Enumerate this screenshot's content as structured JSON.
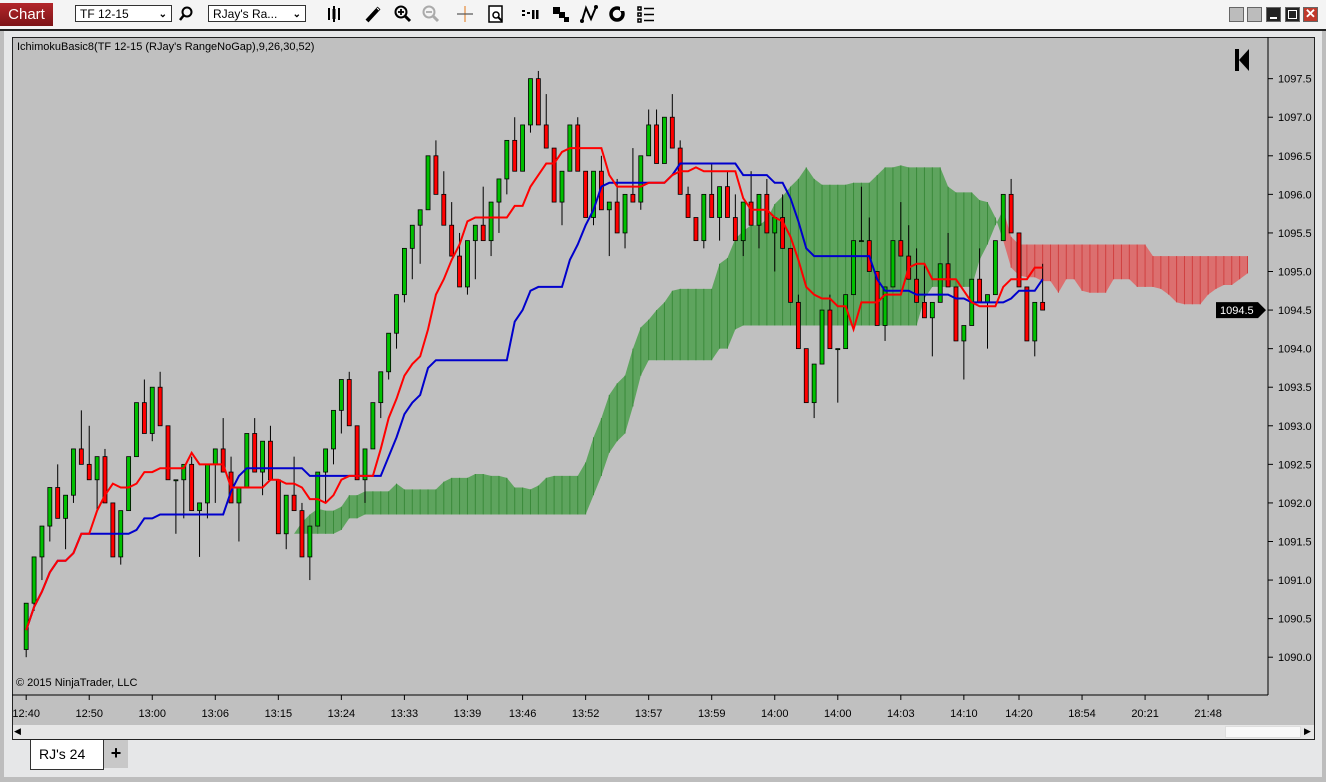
{
  "toolbar": {
    "chart_label": "Chart",
    "instrument": "TF 12-15",
    "bars_type": "RJay's Ra...",
    "icons": [
      "bar-style-icon",
      "pencil-icon",
      "zoom-in-icon",
      "zoom-out-icon",
      "crosshair-icon",
      "data-box-icon",
      "bar-spacing-icon",
      "chart-style-icon",
      "drawing-tools-icon",
      "reload-icon",
      "properties-list-icon"
    ],
    "window_icons": [
      "tile-icon",
      "tile-icon",
      "minimize-icon",
      "maximize-icon",
      "close-icon"
    ]
  },
  "chart": {
    "indicator_label": "IchimokuBasic8(TF 12-15 (RJay's RangeNoGap),9,26,30,52)",
    "copyright": "© 2015 NinjaTrader, LLC",
    "last_price_label": "1094.5",
    "colors": {
      "background": "#c0c0c0",
      "up": "#00c000",
      "down": "#ff0000",
      "tenkan": "#ff0000",
      "kijun": "#0000cc",
      "cloud_bull": "#4c9f4c",
      "cloud_bear": "#e06060"
    }
  },
  "tabs": [
    {
      "label": "RJ's 24"
    }
  ],
  "tab_add": "+",
  "chart_data": {
    "type": "candlestick",
    "title": "IchimokuBasic8(TF 12-15 (RJay's RangeNoGap),9,26,30,52)",
    "params": [
      9,
      26,
      30,
      52
    ],
    "ylim": [
      1089.51,
      1098.04
    ],
    "xlim": [
      -1.8,
      157.6
    ],
    "grid": false,
    "last_price": 1094.5,
    "price_ticks": [
      "1090.0",
      "1090.5",
      "1091.0",
      "1091.5",
      "1092.0",
      "1092.5",
      "1093.0",
      "1093.5",
      "1094.0",
      "1094.5",
      "1095.0",
      "1095.5",
      "1096.0",
      "1096.5",
      "1097.0",
      "1097.5"
    ],
    "time_labels": [
      {
        "bar": 0,
        "label": "12:40"
      },
      {
        "bar": 8,
        "label": "12:50"
      },
      {
        "bar": 16,
        "label": "13:00"
      },
      {
        "bar": 24,
        "label": "13:06"
      },
      {
        "bar": 32,
        "label": "13:15"
      },
      {
        "bar": 40,
        "label": "13:24"
      },
      {
        "bar": 48,
        "label": "13:33"
      },
      {
        "bar": 56,
        "label": "13:39"
      },
      {
        "bar": 63,
        "label": "13:46"
      },
      {
        "bar": 71,
        "label": "13:52"
      },
      {
        "bar": 79,
        "label": "13:57"
      },
      {
        "bar": 87,
        "label": "13:59"
      },
      {
        "bar": 95,
        "label": "14:00"
      },
      {
        "bar": 103,
        "label": "14:00"
      },
      {
        "bar": 111,
        "label": "14:03"
      },
      {
        "bar": 119,
        "label": "14:10"
      },
      {
        "bar": 126,
        "label": "14:20"
      },
      {
        "bar": 134,
        "label": "18:54"
      },
      {
        "bar": 142,
        "label": "20:21"
      },
      {
        "bar": 150,
        "label": "21:48"
      }
    ],
    "ohlc": [
      [
        1090.1,
        1090.7,
        1090.0,
        1090.7
      ],
      [
        1090.7,
        1091.3,
        1090.6,
        1091.3
      ],
      [
        1091.3,
        1091.7,
        1091.0,
        1091.7
      ],
      [
        1091.7,
        1092.2,
        1091.5,
        1092.2
      ],
      [
        1092.2,
        1092.5,
        1091.8,
        1091.8
      ],
      [
        1091.8,
        1092.1,
        1091.4,
        1092.1
      ],
      [
        1092.1,
        1092.7,
        1092.0,
        1092.7
      ],
      [
        1092.7,
        1093.2,
        1092.5,
        1092.5
      ],
      [
        1092.5,
        1093.0,
        1092.3,
        1092.3
      ],
      [
        1092.3,
        1092.6,
        1091.9,
        1092.6
      ],
      [
        1092.6,
        1092.7,
        1092.0,
        1092.0
      ],
      [
        1092.0,
        1092.0,
        1091.3,
        1091.3
      ],
      [
        1091.3,
        1091.9,
        1091.2,
        1091.9
      ],
      [
        1091.9,
        1092.6,
        1091.9,
        1092.6
      ],
      [
        1092.6,
        1093.3,
        1092.6,
        1093.3
      ],
      [
        1093.3,
        1093.6,
        1092.9,
        1092.9
      ],
      [
        1092.9,
        1093.5,
        1092.8,
        1093.5
      ],
      [
        1093.5,
        1093.7,
        1093.0,
        1093.0
      ],
      [
        1093.0,
        1093.0,
        1092.3,
        1092.3
      ],
      [
        1092.3,
        1092.3,
        1091.6,
        1092.3
      ],
      [
        1092.3,
        1092.5,
        1091.8,
        1092.5
      ],
      [
        1092.5,
        1092.6,
        1091.9,
        1091.9
      ],
      [
        1091.9,
        1092.0,
        1091.3,
        1092.0
      ],
      [
        1092.0,
        1092.5,
        1091.8,
        1092.5
      ],
      [
        1092.5,
        1092.7,
        1092.0,
        1092.7
      ],
      [
        1092.7,
        1093.1,
        1092.4,
        1092.4
      ],
      [
        1092.4,
        1092.6,
        1092.0,
        1092.0
      ],
      [
        1092.0,
        1092.2,
        1091.5,
        1092.2
      ],
      [
        1092.2,
        1092.9,
        1092.2,
        1092.9
      ],
      [
        1092.9,
        1093.1,
        1092.4,
        1092.4
      ],
      [
        1092.4,
        1092.8,
        1092.1,
        1092.8
      ],
      [
        1092.8,
        1093.0,
        1092.3,
        1092.3
      ],
      [
        1092.3,
        1092.3,
        1091.6,
        1091.6
      ],
      [
        1091.6,
        1092.1,
        1091.4,
        1092.1
      ],
      [
        1092.1,
        1092.6,
        1091.9,
        1091.9
      ],
      [
        1091.9,
        1092.0,
        1091.3,
        1091.3
      ],
      [
        1091.3,
        1091.7,
        1091.0,
        1091.7
      ],
      [
        1091.7,
        1092.4,
        1091.7,
        1092.4
      ],
      [
        1092.4,
        1092.7,
        1092.0,
        1092.7
      ],
      [
        1092.7,
        1093.2,
        1092.5,
        1093.2
      ],
      [
        1093.2,
        1093.6,
        1092.9,
        1093.6
      ],
      [
        1093.6,
        1093.7,
        1093.0,
        1093.0
      ],
      [
        1093.0,
        1093.0,
        1092.3,
        1092.3
      ],
      [
        1092.3,
        1092.7,
        1092.0,
        1092.7
      ],
      [
        1092.7,
        1093.3,
        1092.7,
        1093.3
      ],
      [
        1093.3,
        1093.7,
        1093.1,
        1093.7
      ],
      [
        1093.7,
        1094.2,
        1093.6,
        1094.2
      ],
      [
        1094.2,
        1094.7,
        1094.0,
        1094.7
      ],
      [
        1094.7,
        1095.3,
        1094.6,
        1095.3
      ],
      [
        1095.3,
        1095.6,
        1094.9,
        1095.6
      ],
      [
        1095.6,
        1095.8,
        1095.1,
        1095.8
      ],
      [
        1095.8,
        1096.5,
        1095.8,
        1096.5
      ],
      [
        1096.5,
        1096.7,
        1096.0,
        1096.0
      ],
      [
        1096.0,
        1096.3,
        1095.6,
        1095.6
      ],
      [
        1095.6,
        1095.9,
        1095.2,
        1095.2
      ],
      [
        1095.2,
        1095.5,
        1094.8,
        1094.8
      ],
      [
        1094.8,
        1095.4,
        1094.7,
        1095.4
      ],
      [
        1095.4,
        1095.6,
        1094.9,
        1095.6
      ],
      [
        1095.6,
        1096.1,
        1095.4,
        1095.4
      ],
      [
        1095.4,
        1095.9,
        1095.2,
        1095.9
      ],
      [
        1095.9,
        1096.2,
        1095.5,
        1096.2
      ],
      [
        1096.2,
        1096.7,
        1096.0,
        1096.7
      ],
      [
        1096.7,
        1097.0,
        1096.3,
        1096.3
      ],
      [
        1096.3,
        1096.9,
        1096.3,
        1096.9
      ],
      [
        1096.9,
        1097.5,
        1096.8,
        1097.5
      ],
      [
        1097.5,
        1097.6,
        1096.9,
        1096.9
      ],
      [
        1096.9,
        1097.3,
        1096.6,
        1096.6
      ],
      [
        1096.6,
        1096.6,
        1095.9,
        1095.9
      ],
      [
        1095.9,
        1096.3,
        1095.6,
        1096.3
      ],
      [
        1096.3,
        1096.9,
        1096.3,
        1096.9
      ],
      [
        1096.9,
        1097.0,
        1096.3,
        1096.3
      ],
      [
        1096.3,
        1096.3,
        1095.7,
        1095.7
      ],
      [
        1095.7,
        1096.3,
        1095.6,
        1096.3
      ],
      [
        1096.3,
        1096.5,
        1095.8,
        1095.8
      ],
      [
        1095.8,
        1095.9,
        1095.2,
        1095.9
      ],
      [
        1095.9,
        1096.2,
        1095.5,
        1095.5
      ],
      [
        1095.5,
        1096.0,
        1095.3,
        1096.0
      ],
      [
        1096.0,
        1096.6,
        1095.9,
        1095.9
      ],
      [
        1095.9,
        1096.5,
        1095.8,
        1096.5
      ],
      [
        1096.5,
        1097.1,
        1096.5,
        1096.9
      ],
      [
        1096.9,
        1097.1,
        1096.4,
        1096.4
      ],
      [
        1096.4,
        1097.0,
        1096.4,
        1097.0
      ],
      [
        1097.0,
        1097.3,
        1096.6,
        1096.6
      ],
      [
        1096.6,
        1096.7,
        1096.0,
        1096.0
      ],
      [
        1096.0,
        1096.1,
        1095.7,
        1095.7
      ],
      [
        1095.7,
        1095.7,
        1095.4,
        1095.4
      ],
      [
        1095.4,
        1096.0,
        1095.3,
        1096.0
      ],
      [
        1096.0,
        1096.4,
        1095.7,
        1095.7
      ],
      [
        1095.7,
        1096.1,
        1095.4,
        1096.1
      ],
      [
        1096.1,
        1096.3,
        1095.7,
        1095.7
      ],
      [
        1095.7,
        1096.0,
        1095.4,
        1095.4
      ],
      [
        1095.4,
        1095.9,
        1095.2,
        1095.9
      ],
      [
        1095.9,
        1096.3,
        1095.6,
        1095.6
      ],
      [
        1095.6,
        1096.0,
        1095.3,
        1096.0
      ],
      [
        1096.0,
        1096.2,
        1095.5,
        1095.5
      ],
      [
        1095.5,
        1095.7,
        1095.0,
        1095.7
      ],
      [
        1095.7,
        1096.0,
        1095.3,
        1095.3
      ],
      [
        1095.3,
        1095.3,
        1094.6,
        1094.6
      ],
      [
        1094.6,
        1094.7,
        1094.0,
        1094.0
      ],
      [
        1094.0,
        1094.0,
        1093.3,
        1093.3
      ],
      [
        1093.3,
        1093.8,
        1093.1,
        1093.8
      ],
      [
        1093.8,
        1094.5,
        1093.8,
        1094.5
      ],
      [
        1094.5,
        1094.7,
        1094.0,
        1094.0
      ],
      [
        1094.0,
        1094.0,
        1093.3,
        1094.0
      ],
      [
        1094.0,
        1094.7,
        1094.0,
        1094.7
      ],
      [
        1094.7,
        1095.4,
        1094.7,
        1095.4
      ],
      [
        1095.4,
        1096.1,
        1095.4,
        1095.4
      ],
      [
        1095.4,
        1095.7,
        1095.0,
        1095.0
      ],
      [
        1095.0,
        1095.0,
        1094.3,
        1094.3
      ],
      [
        1094.3,
        1094.8,
        1094.1,
        1094.8
      ],
      [
        1094.8,
        1095.4,
        1094.8,
        1095.4
      ],
      [
        1095.4,
        1095.9,
        1095.2,
        1095.2
      ],
      [
        1095.2,
        1095.6,
        1094.9,
        1094.9
      ],
      [
        1094.9,
        1095.3,
        1094.6,
        1094.6
      ],
      [
        1094.6,
        1095.1,
        1094.4,
        1094.4
      ],
      [
        1094.4,
        1094.6,
        1093.9,
        1094.6
      ],
      [
        1094.6,
        1095.1,
        1094.6,
        1095.1
      ],
      [
        1095.1,
        1095.5,
        1094.8,
        1094.8
      ],
      [
        1094.8,
        1094.8,
        1094.1,
        1094.1
      ],
      [
        1094.1,
        1094.3,
        1093.6,
        1094.3
      ],
      [
        1094.3,
        1094.9,
        1094.3,
        1094.9
      ],
      [
        1094.9,
        1095.3,
        1094.6,
        1094.6
      ],
      [
        1094.6,
        1094.7,
        1094.0,
        1094.7
      ],
      [
        1094.7,
        1095.4,
        1094.7,
        1095.4
      ],
      [
        1095.4,
        1096.0,
        1095.4,
        1096.0
      ],
      [
        1096.0,
        1096.2,
        1095.5,
        1095.5
      ],
      [
        1095.5,
        1095.5,
        1094.8,
        1094.8
      ],
      [
        1094.8,
        1094.8,
        1094.1,
        1094.1
      ],
      [
        1094.1,
        1094.6,
        1093.9,
        1094.6
      ],
      [
        1094.6,
        1095.1,
        1094.5,
        1094.5
      ]
    ]
  }
}
